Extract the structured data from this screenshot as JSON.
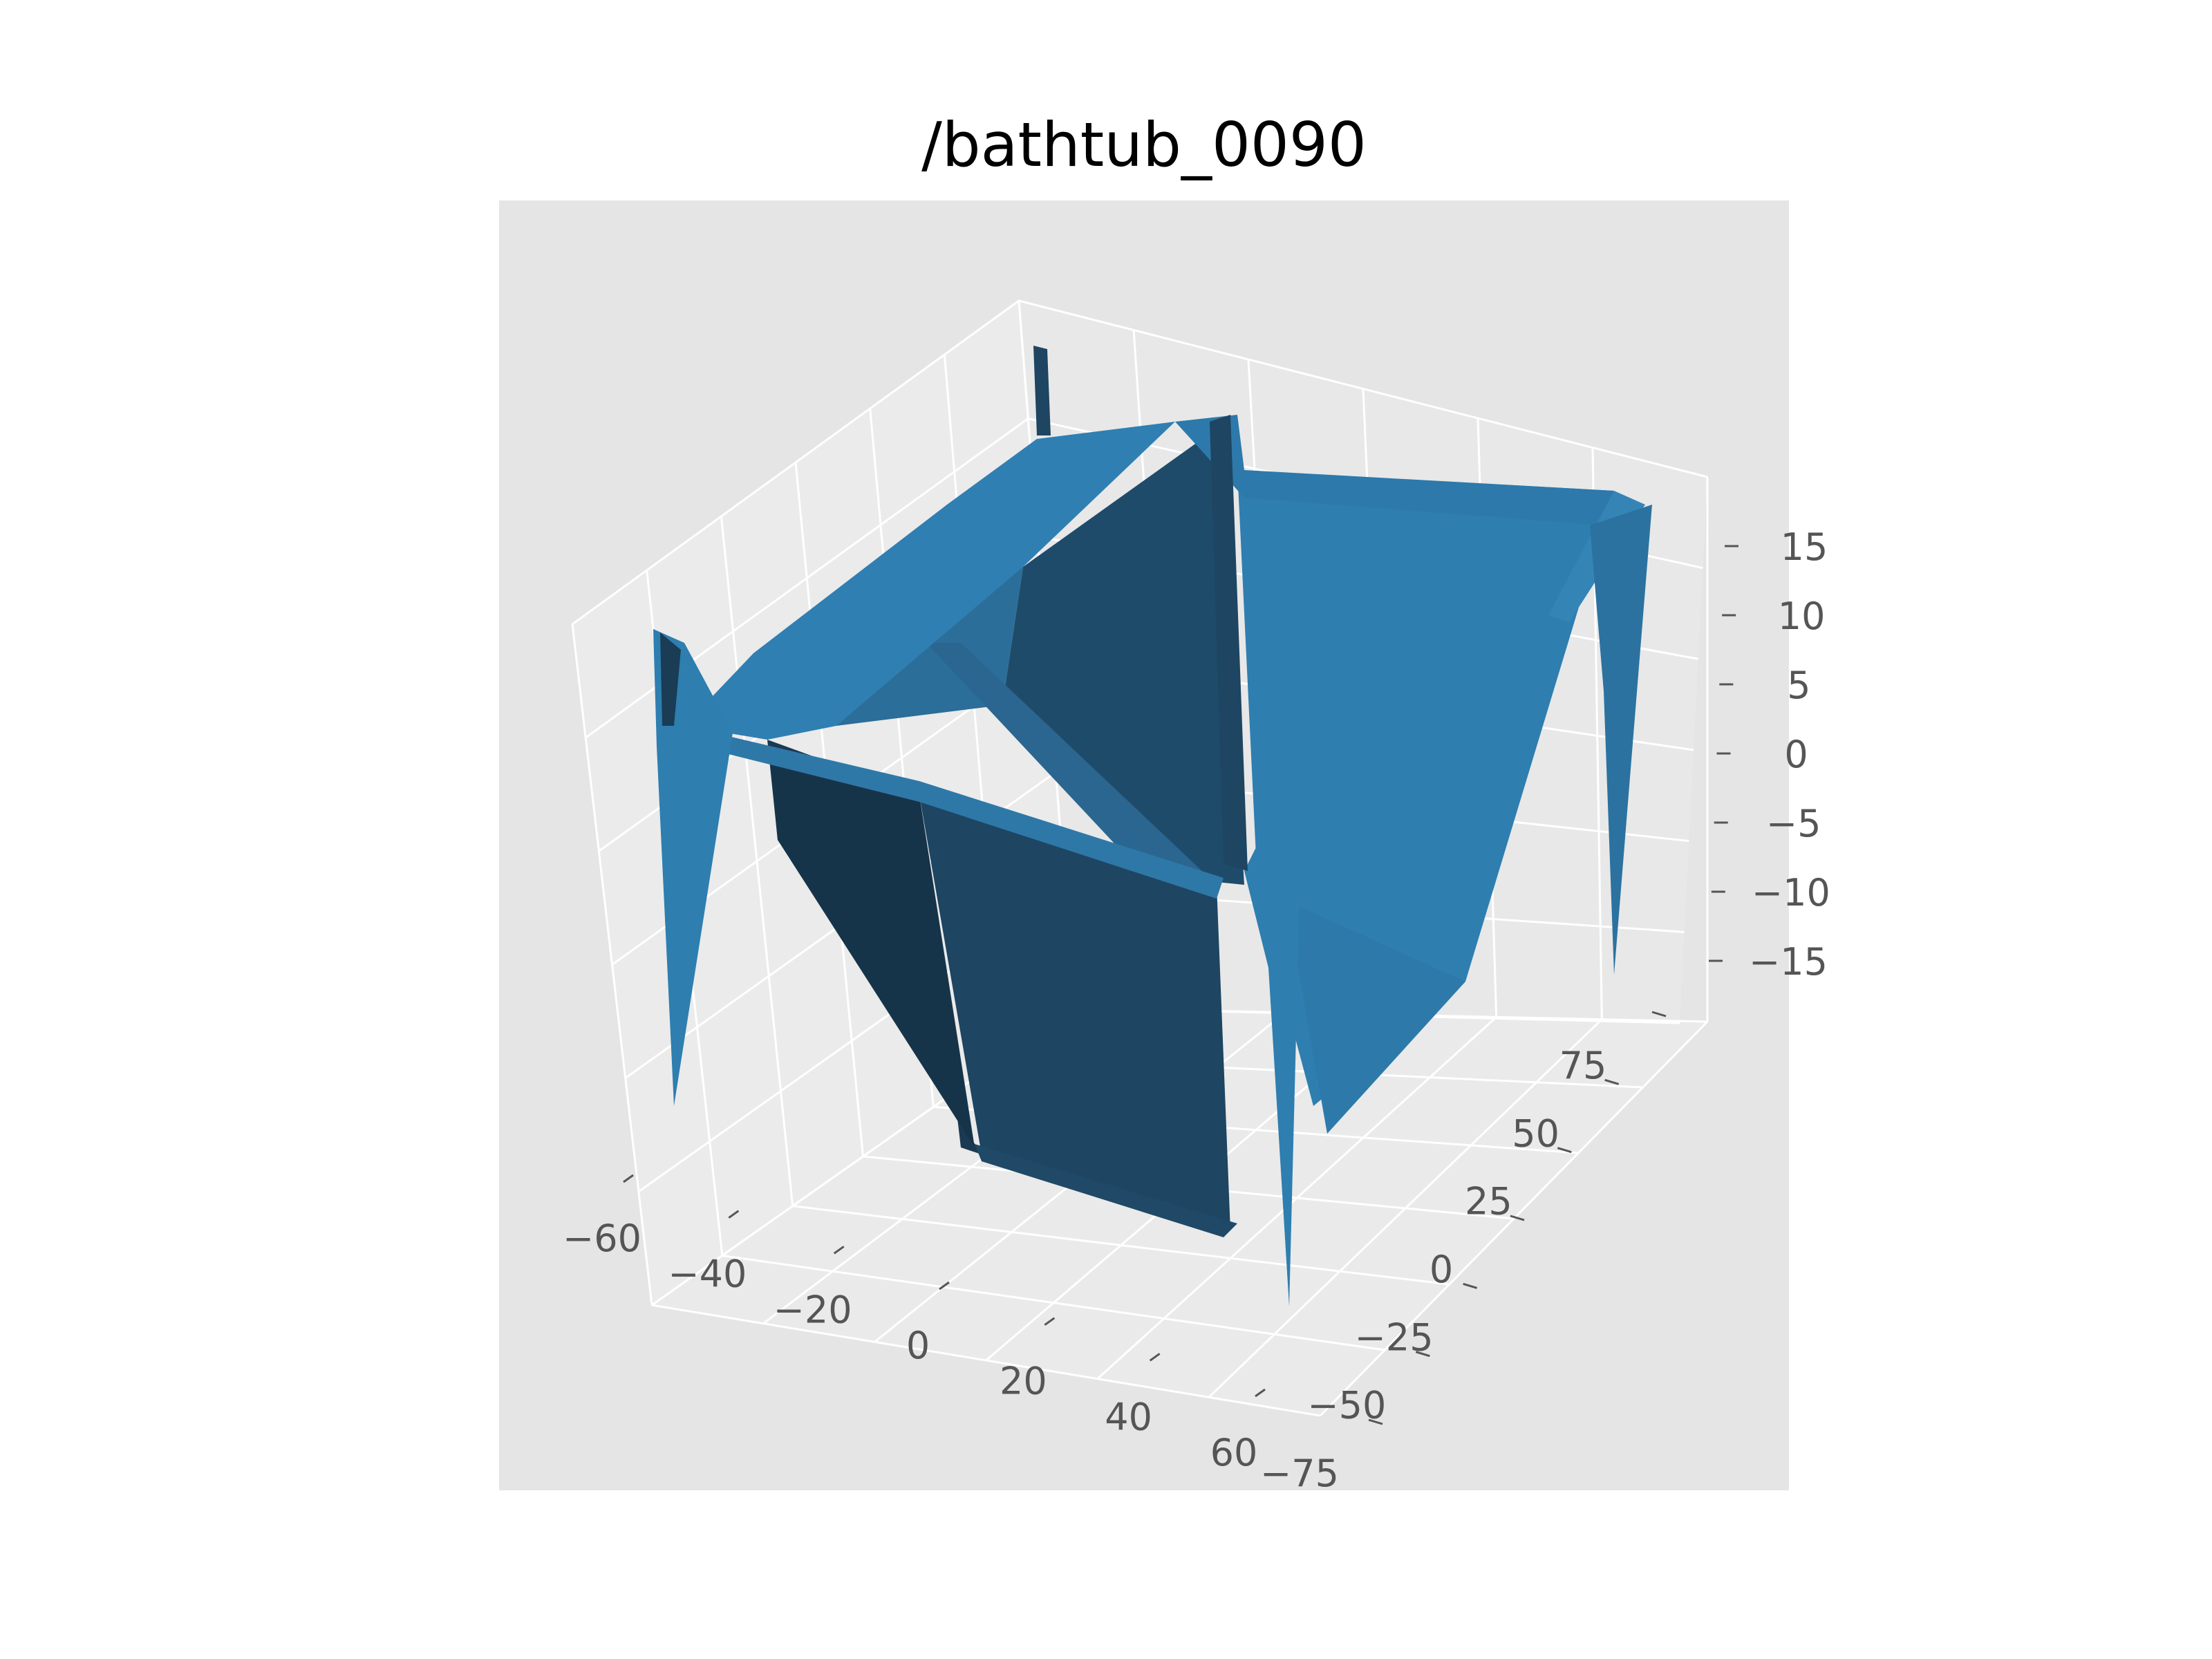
{
  "chart_data": {
    "type": "surface3d",
    "title": "/bathtub_0090",
    "style": "ggplot",
    "surface_color": "#2e7eb0",
    "pane_color": "#e5e5e5",
    "grid": true,
    "x_axis": {
      "label": "",
      "ticks": [
        -60,
        -40,
        -20,
        0,
        20,
        40,
        60
      ],
      "tick_labels": [
        "−60",
        "−40",
        "−20",
        "0",
        "20",
        "40",
        "60"
      ]
    },
    "y_axis": {
      "label": "",
      "ticks": [
        -75,
        -50,
        -25,
        0,
        25,
        50,
        75
      ],
      "tick_labels": [
        "−75",
        "−50",
        "−25",
        "0",
        "25",
        "50",
        "75"
      ]
    },
    "z_axis": {
      "label": "",
      "ticks": [
        -15,
        -10,
        -5,
        0,
        5,
        10,
        15
      ],
      "tick_labels": [
        "−15",
        "−10",
        "−5",
        "0",
        "5",
        "10",
        "15"
      ]
    }
  }
}
